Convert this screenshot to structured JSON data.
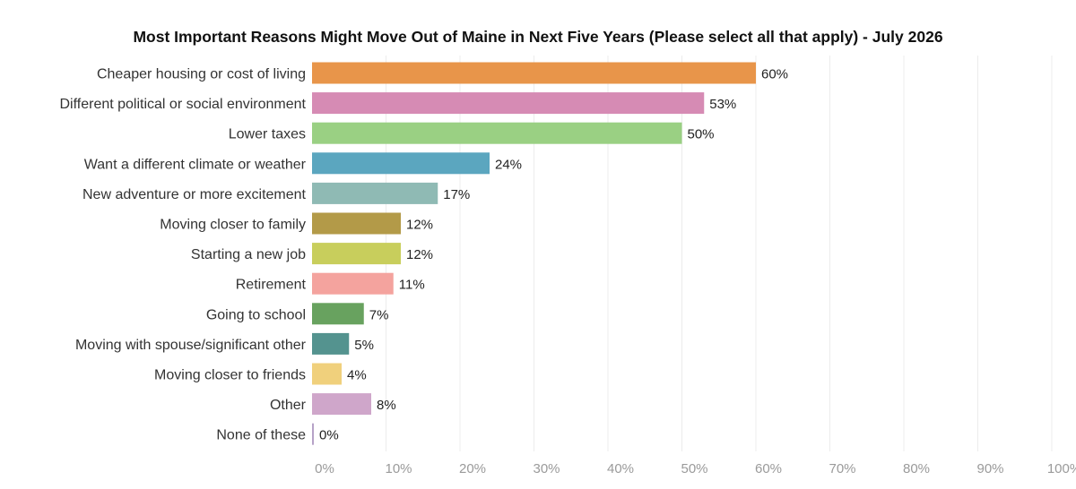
{
  "chart_data": {
    "type": "bar",
    "orientation": "horizontal",
    "title": "Most Important Reasons Might Move Out of Maine in Next Five Years (Please select all that apply) - July 2026",
    "xlabel": "",
    "ylabel": "",
    "xlim": [
      0,
      100
    ],
    "grid": true,
    "legend": "none",
    "x_ticks": [
      "0%",
      "10%",
      "20%",
      "30%",
      "40%",
      "50%",
      "60%",
      "70%",
      "80%",
      "90%",
      "100%"
    ],
    "categories": [
      "Cheaper housing or cost of living",
      "Different political or social environment",
      "Lower taxes",
      "Want a different climate or weather",
      "New adventure or more excitement",
      "Moving closer to family",
      "Starting a new job",
      "Retirement",
      "Going to school",
      "Moving with spouse/significant other",
      "Moving closer to friends",
      "Other",
      "None of these"
    ],
    "values": [
      60,
      53,
      50,
      24,
      17,
      12,
      12,
      11,
      7,
      5,
      4,
      8,
      0
    ],
    "value_labels": [
      "60%",
      "53%",
      "50%",
      "24%",
      "17%",
      "12%",
      "12%",
      "11%",
      "7%",
      "5%",
      "4%",
      "8%",
      "0%"
    ],
    "colors": [
      "#E8954A",
      "#D68BB4",
      "#9AD083",
      "#5BA6BF",
      "#8FBAB4",
      "#B39A48",
      "#C8CE5C",
      "#F4A39E",
      "#68A25F",
      "#54938F",
      "#F0D07C",
      "#CFA6CA",
      "#B6A2C8"
    ]
  }
}
